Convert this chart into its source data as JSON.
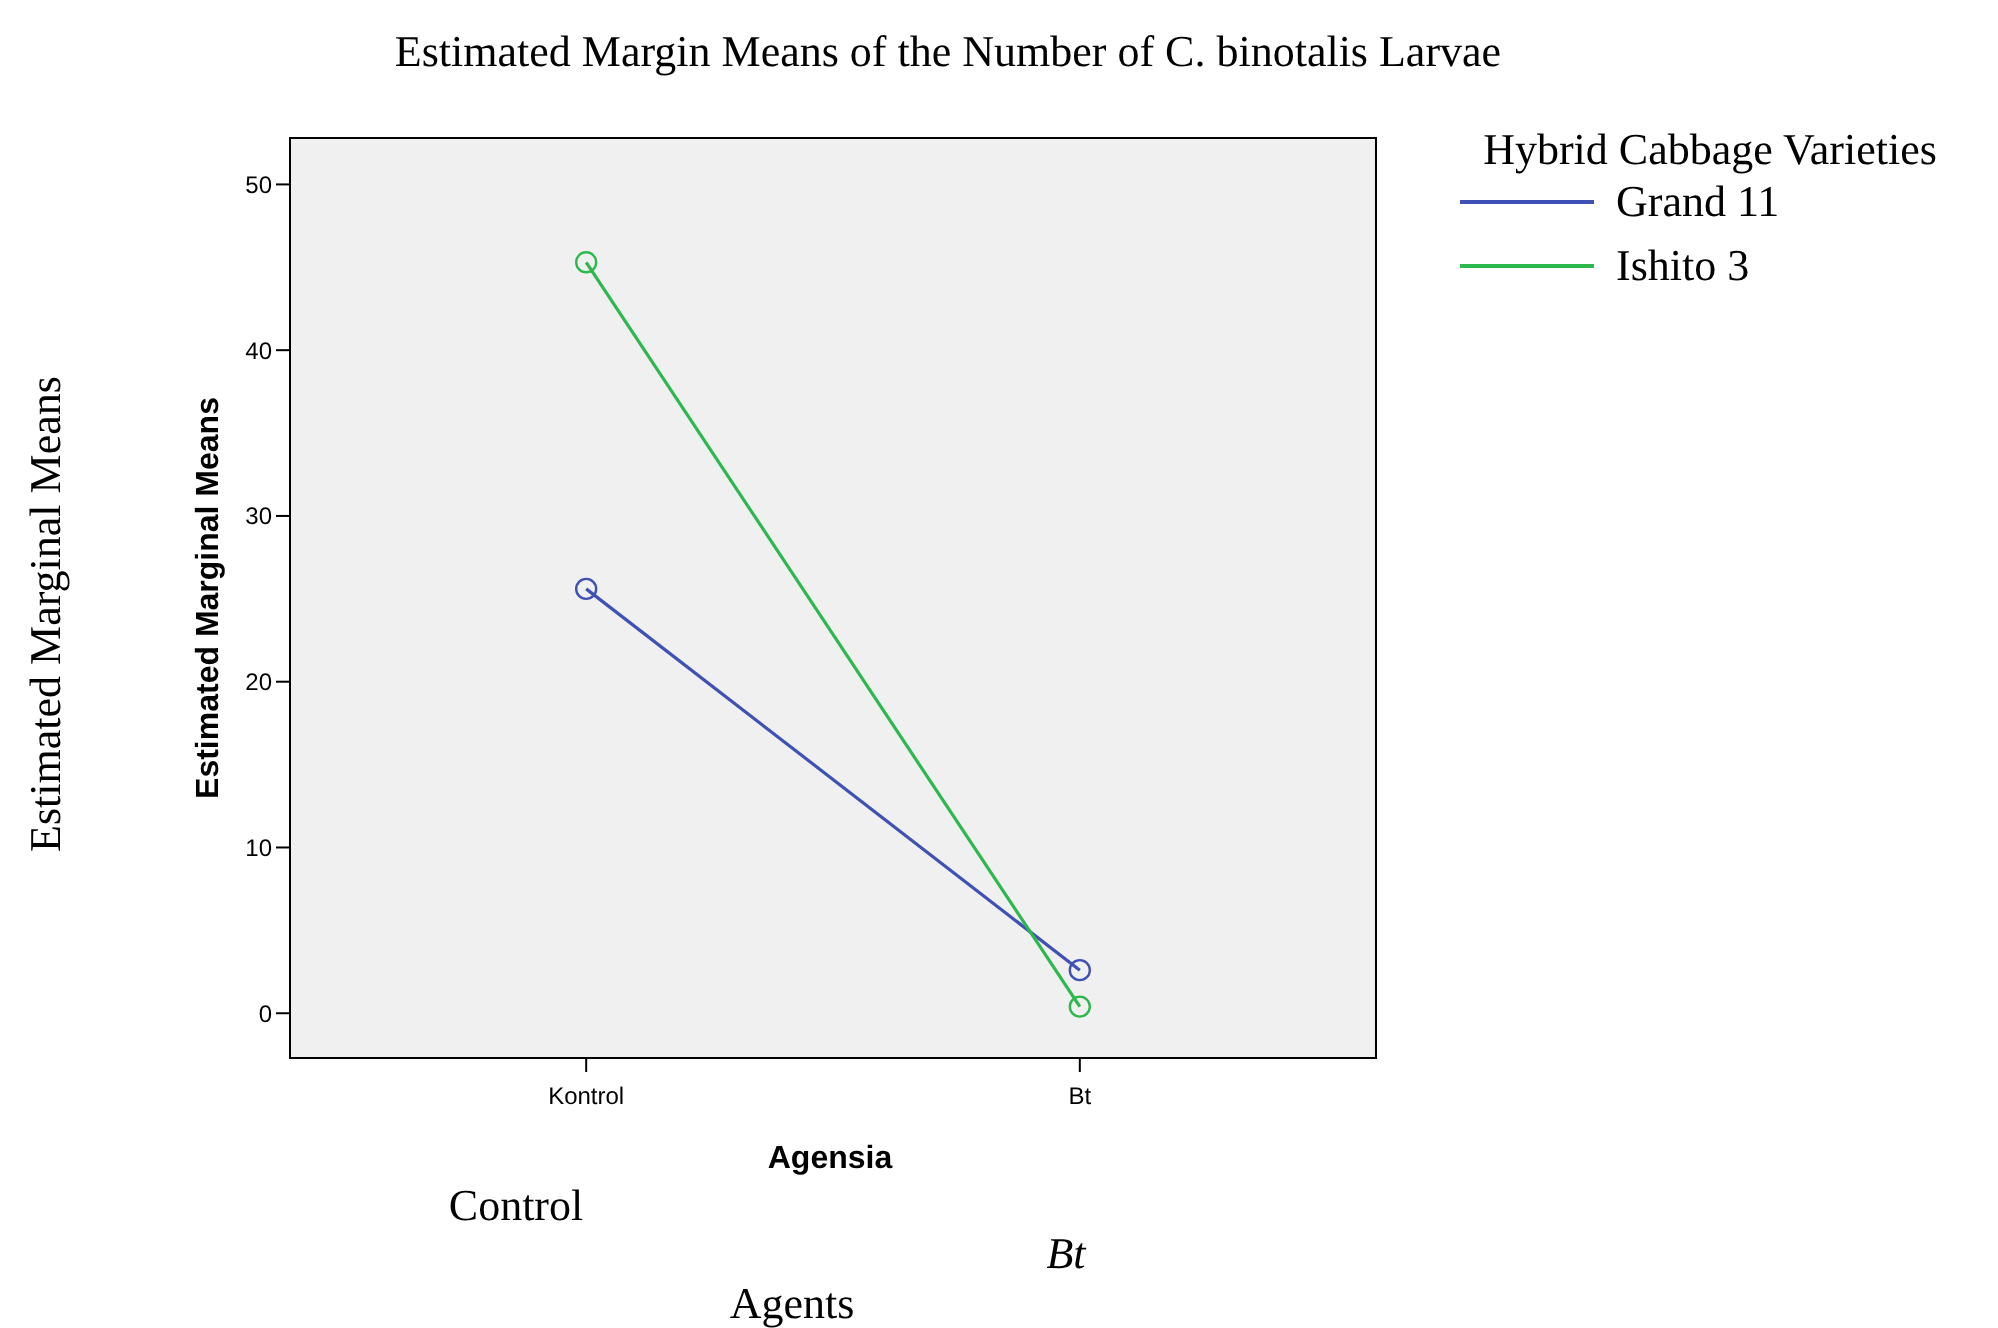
{
  "chart_data": {
    "type": "line",
    "title": "Estimated Margin Means of the Number of C. binotalis  Larvae",
    "xlabel": "Agensia",
    "ylabel": "Estimated Marginal Means",
    "legend_title": "Hybrid Cabbage Varieties",
    "categories": [
      "Kontrol",
      "Bt"
    ],
    "series": [
      {
        "name": "Grand 11",
        "color": "#3f51b5",
        "values": [
          25.6,
          2.6
        ]
      },
      {
        "name": "Ishito 3",
        "color": "#2db84d",
        "values": [
          45.3,
          0.4
        ]
      }
    ],
    "ylim": [
      -2.7,
      52.8
    ],
    "yticks": [
      0,
      10,
      20,
      30,
      40,
      50
    ],
    "grid": false,
    "legend": "top right",
    "marker": "circle",
    "line_style": "solid",
    "annotations": [
      "Estimated Marginal Means",
      "Control",
      "Bt",
      "Agents"
    ]
  }
}
